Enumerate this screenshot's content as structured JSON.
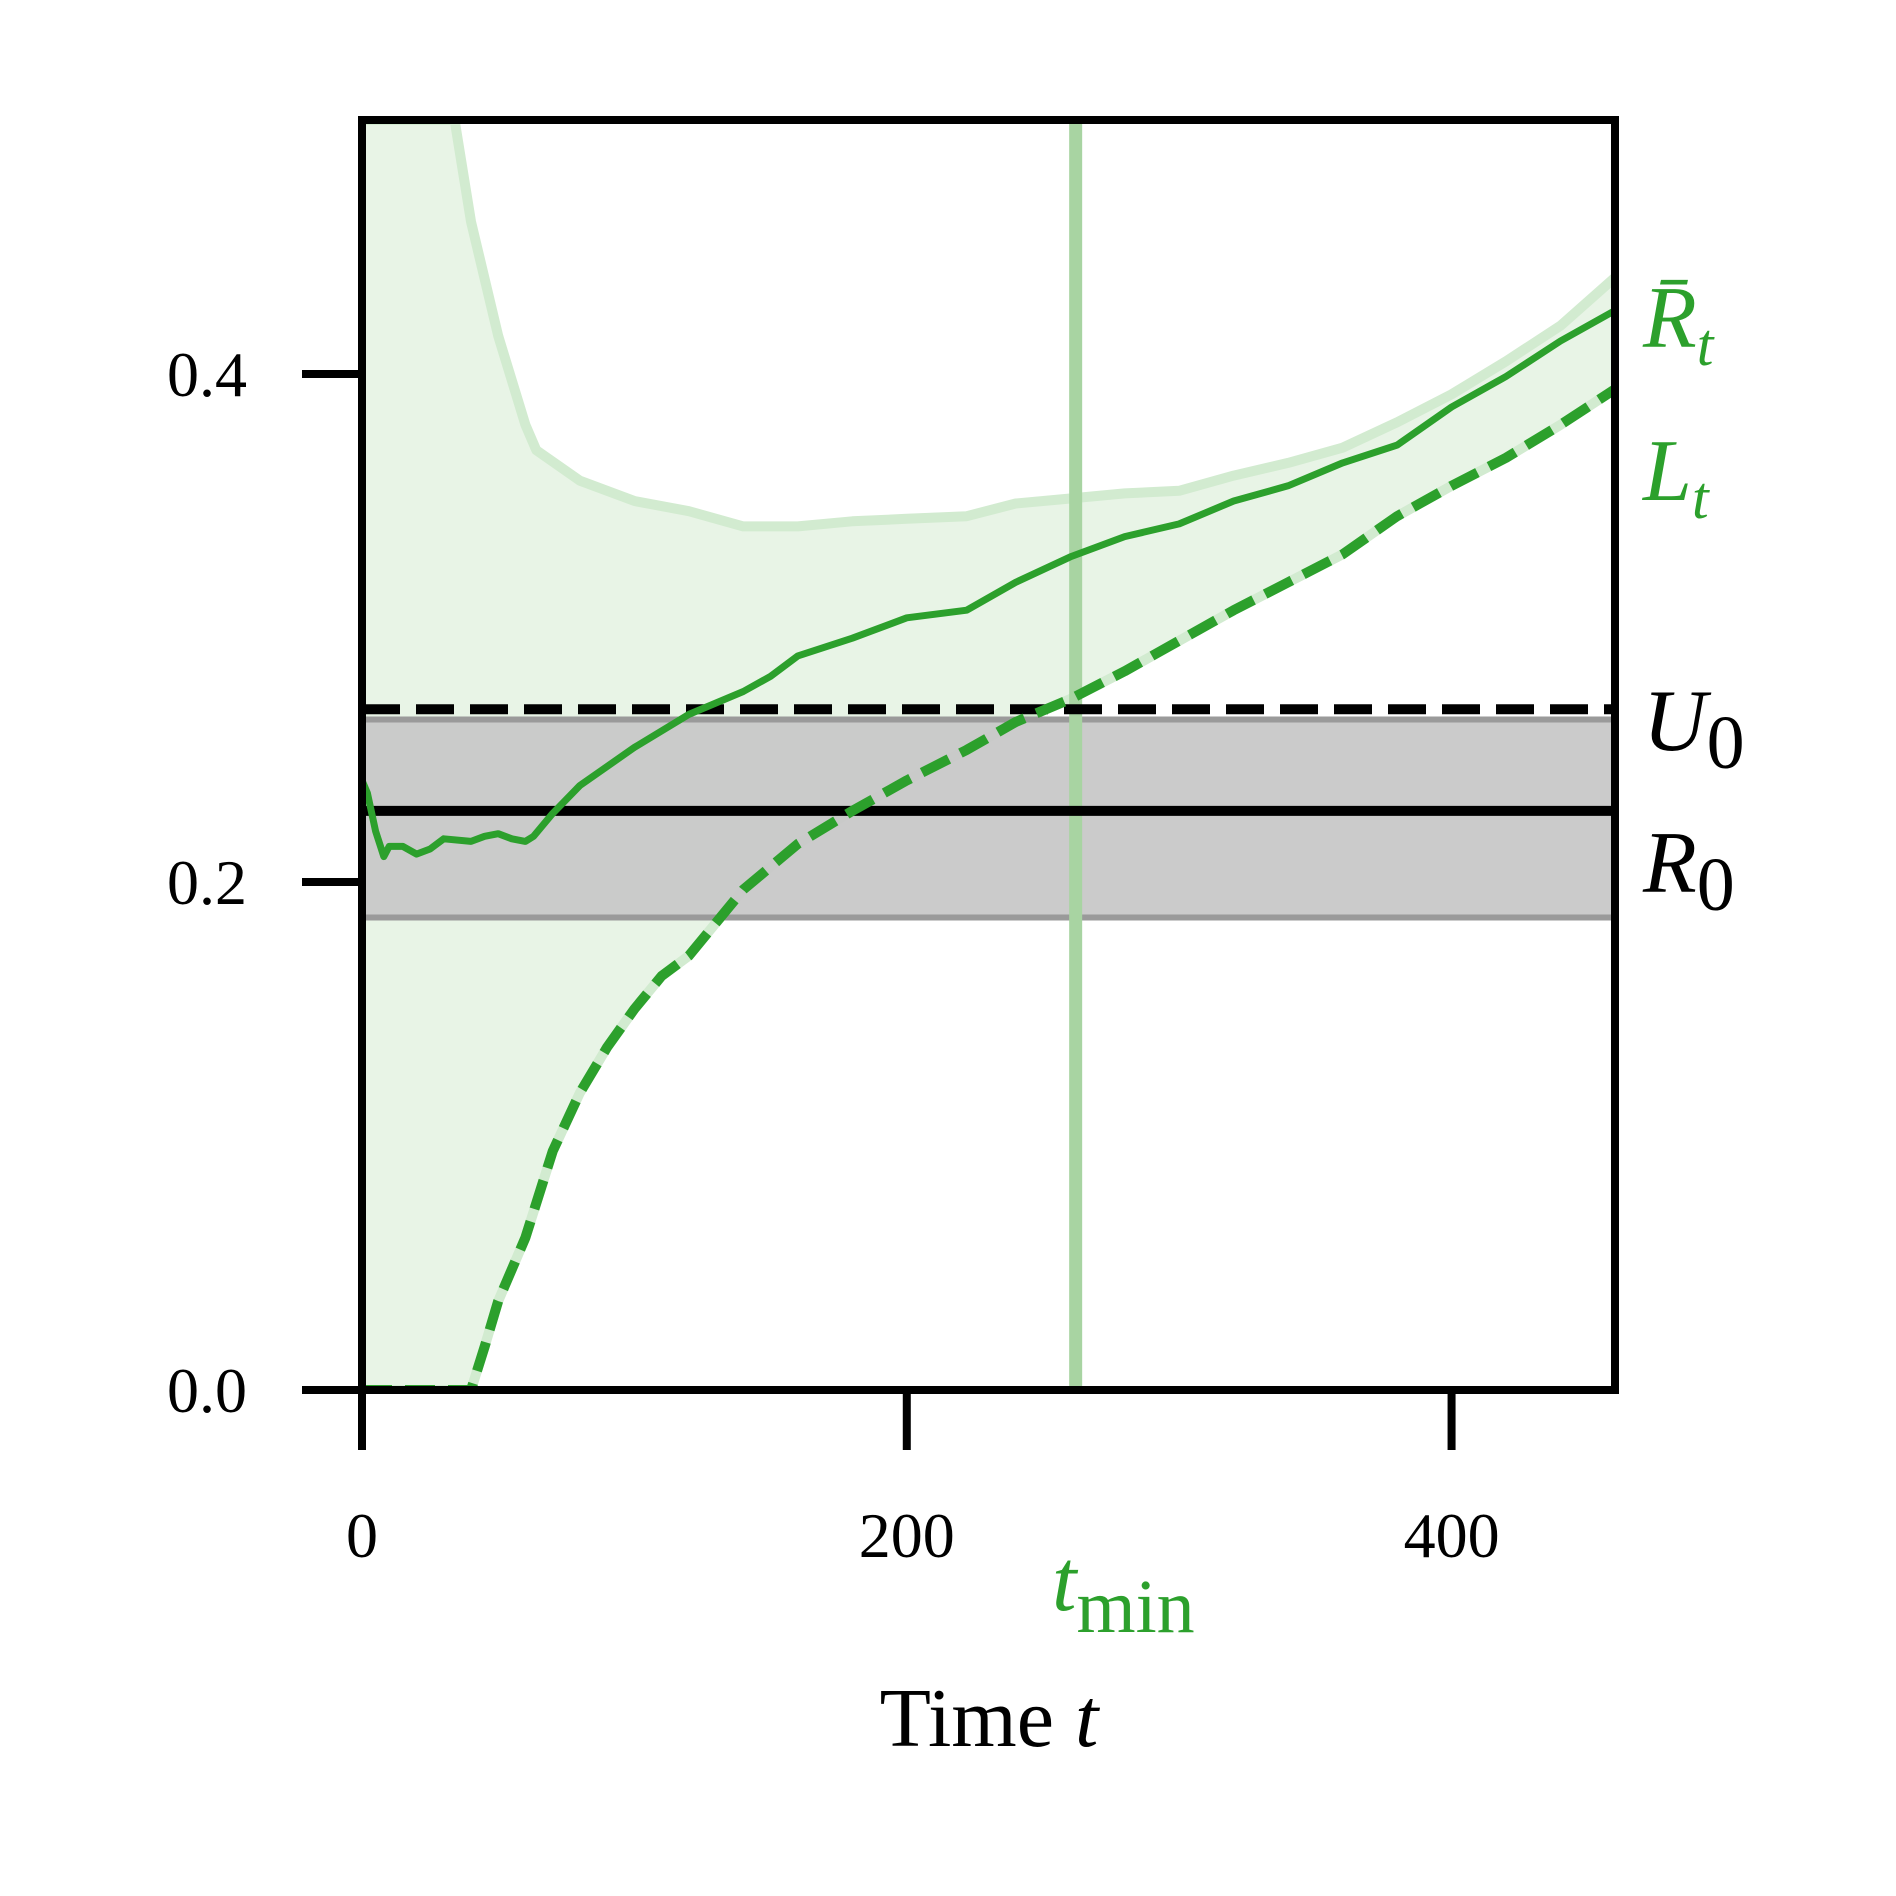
{
  "chart_data": {
    "type": "line",
    "title": "",
    "xlabel": {
      "text": "Time ",
      "var": "t"
    },
    "ylabel": "",
    "xlim": [
      0,
      460
    ],
    "ylim": [
      0,
      0.5
    ],
    "xticks": [
      0,
      200,
      400
    ],
    "yticks": [
      0.0,
      0.2,
      0.4
    ],
    "xtick_labels": [
      "0",
      "200",
      "400"
    ],
    "ytick_labels": [
      "0.0",
      "0.2",
      "0.4"
    ],
    "grid": false,
    "legend": "none",
    "colors": {
      "series": "#2ca02c",
      "band_fill": "#e8f4e6",
      "band_edge": "#d2ebd0",
      "tmin_line": "#a8d4a2",
      "reference": "#000000",
      "reference_band": "#c8c8c8"
    },
    "upper_band": {
      "x": [
        0,
        10,
        20,
        30,
        34,
        40,
        50,
        60,
        64,
        80,
        100,
        120,
        140,
        160,
        180,
        200,
        222,
        240,
        260,
        280,
        300,
        320,
        340,
        360,
        380,
        400,
        420,
        440,
        460
      ],
      "values": [
        0.5,
        0.5,
        0.5,
        0.5,
        0.5,
        0.46,
        0.415,
        0.38,
        0.37,
        0.358,
        0.35,
        0.346,
        0.34,
        0.34,
        0.342,
        0.343,
        0.344,
        0.349,
        0.351,
        0.353,
        0.354,
        0.36,
        0.365,
        0.371,
        0.381,
        0.392,
        0.405,
        0.419,
        0.438
      ]
    },
    "series": [
      {
        "name": "R̄_t",
        "style": "solid",
        "x": [
          0,
          2,
          5,
          8,
          10,
          15,
          20,
          25,
          30,
          40,
          45,
          50,
          55,
          60,
          63,
          70,
          80,
          100,
          120,
          140,
          150,
          160,
          180,
          200,
          222,
          240,
          260,
          280,
          300,
          320,
          340,
          360,
          380,
          400,
          420,
          440,
          460
        ],
        "values": [
          0.24,
          0.235,
          0.22,
          0.21,
          0.214,
          0.214,
          0.211,
          0.213,
          0.217,
          0.216,
          0.218,
          0.219,
          0.217,
          0.216,
          0.218,
          0.227,
          0.238,
          0.253,
          0.266,
          0.275,
          0.281,
          0.289,
          0.296,
          0.304,
          0.307,
          0.318,
          0.328,
          0.336,
          0.341,
          0.35,
          0.356,
          0.365,
          0.372,
          0.387,
          0.399,
          0.413,
          0.425
        ]
      },
      {
        "name": "L_t",
        "style": "dashed",
        "x": [
          0,
          10,
          20,
          30,
          40,
          45,
          50,
          60,
          70,
          80,
          90,
          100,
          110,
          120,
          140,
          160,
          180,
          200,
          222,
          240,
          260,
          280,
          300,
          320,
          340,
          360,
          380,
          400,
          420,
          440,
          460
        ],
        "values": [
          0.0,
          0.0,
          0.0,
          0.0,
          0.0,
          0.017,
          0.035,
          0.06,
          0.094,
          0.117,
          0.135,
          0.15,
          0.163,
          0.171,
          0.197,
          0.215,
          0.228,
          0.24,
          0.252,
          0.263,
          0.272,
          0.283,
          0.295,
          0.307,
          0.318,
          0.329,
          0.344,
          0.356,
          0.367,
          0.38,
          0.394
        ]
      }
    ],
    "reference_lines": [
      {
        "name": "U_0",
        "style": "dashed",
        "value": 0.268
      },
      {
        "name": "R_0",
        "style": "solid",
        "value": 0.228
      }
    ],
    "reference_band": {
      "lower": 0.186,
      "upper": 0.264
    },
    "vertical_line": {
      "name": "t_min",
      "x": 262
    },
    "annotations": [
      {
        "id": "r_bar_t",
        "base": "R̄",
        "sub": "t",
        "color": "#2ca02c"
      },
      {
        "id": "l_t",
        "base": "L",
        "sub": "t",
        "color": "#2ca02c"
      },
      {
        "id": "u_0",
        "base": "U",
        "sub": "0",
        "color": "#000000"
      },
      {
        "id": "r_0",
        "base": "R",
        "sub": "0",
        "color": "#000000"
      },
      {
        "id": "t_min",
        "base": "t",
        "sub": "min",
        "color": "#2ca02c"
      }
    ]
  }
}
